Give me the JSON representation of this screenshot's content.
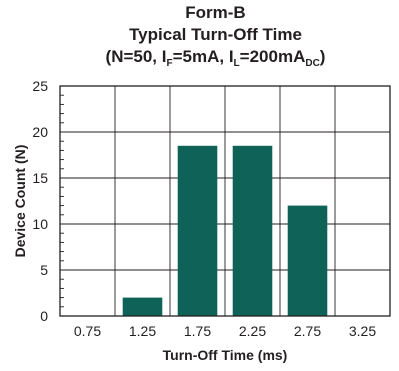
{
  "chart_data": {
    "type": "bar",
    "title_lines": [
      "Form-B",
      "Typical Turn-Off Time"
    ],
    "subtitle": {
      "prefix": "(N=50, I",
      "sub1": "F",
      "mid": "=5mA, I",
      "sub2": "L",
      "suffix_main": "=200mA",
      "sub3": "DC",
      "close": ")"
    },
    "categories": [
      "0.75",
      "1.25",
      "1.75",
      "2.25",
      "2.75",
      "3.25"
    ],
    "values": [
      0,
      2,
      18.5,
      18.5,
      12,
      0
    ],
    "xlabel": "Turn-Off Time (ms)",
    "ylabel": "Device Count (N)",
    "ylim": [
      0,
      25
    ],
    "yticks": [
      "0",
      "5",
      "10",
      "15",
      "20",
      "25"
    ],
    "grid": true,
    "bar_color": "#0e6257"
  }
}
